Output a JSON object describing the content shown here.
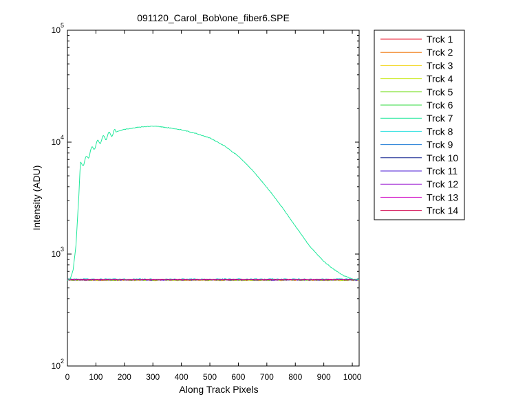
{
  "chart_data": {
    "type": "line",
    "title": "091120_Carol_Bob\\one_fiber6.SPE",
    "xlabel": "Along Track Pixels",
    "ylabel": "Intensity (ADU)",
    "xlim": [
      0,
      1024
    ],
    "ylim": [
      100,
      100000
    ],
    "yscale": "log",
    "grid": false,
    "legend_position": "outside-top-right",
    "x_ticks": [
      0,
      100,
      200,
      300,
      400,
      500,
      600,
      700,
      800,
      900,
      1000
    ],
    "y_ticks": [
      {
        "value": 100,
        "base": "10",
        "exp": "2"
      },
      {
        "value": 1000,
        "base": "10",
        "exp": "3"
      },
      {
        "value": 10000,
        "base": "10",
        "exp": "4"
      },
      {
        "value": 100000,
        "base": "10",
        "exp": "5"
      }
    ],
    "series": [
      {
        "name": "Trck 1",
        "color": "#e8122a",
        "baseline": 590
      },
      {
        "name": "Trck 2",
        "color": "#f07a12",
        "baseline": 586
      },
      {
        "name": "Trck 3",
        "color": "#f2d51a",
        "baseline": 584
      },
      {
        "name": "Trck 4",
        "color": "#c7e814",
        "baseline": 585
      },
      {
        "name": "Trck 5",
        "color": "#7fe02a",
        "baseline": 588
      },
      {
        "name": "Trck 6",
        "color": "#2fd83e",
        "baseline": 590
      },
      {
        "name": "Trck 7",
        "color": "#1ee89a",
        "x": [
          0,
          10,
          20,
          30,
          40,
          45,
          50,
          60,
          70,
          80,
          100,
          120,
          150,
          180,
          200,
          250,
          300,
          320,
          350,
          400,
          450,
          500,
          550,
          600,
          650,
          700,
          750,
          800,
          850,
          900,
          930,
          950,
          970,
          1000,
          1024
        ],
        "values": [
          580,
          600,
          720,
          1200,
          3300,
          6200,
          6400,
          6700,
          7300,
          8200,
          9500,
          10600,
          11800,
          12600,
          13000,
          13600,
          13900,
          13800,
          13500,
          12900,
          12000,
          10900,
          9300,
          7500,
          5600,
          3950,
          2700,
          1780,
          1180,
          860,
          745,
          690,
          640,
          600,
          590
        ]
      },
      {
        "name": "Trck 8",
        "color": "#2ee0e0",
        "baseline": 598
      },
      {
        "name": "Trck 9",
        "color": "#1a78d6",
        "baseline": 592
      },
      {
        "name": "Trck 10",
        "color": "#0a1a8c",
        "baseline": 590
      },
      {
        "name": "Trck 11",
        "color": "#4a1ad6",
        "baseline": 588
      },
      {
        "name": "Trck 12",
        "color": "#9a1ad2",
        "baseline": 590
      },
      {
        "name": "Trck 13",
        "color": "#d21ac8",
        "baseline": 592
      },
      {
        "name": "Trck 14",
        "color": "#d4145a",
        "baseline": 591
      }
    ]
  }
}
